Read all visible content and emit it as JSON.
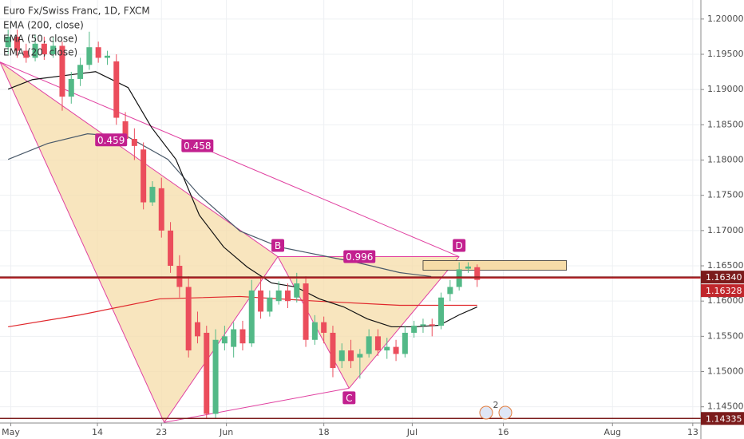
{
  "chart_data": {
    "type": "candlestick",
    "title": "Euro Fx/Swiss Franc, 1D, FXCM",
    "up_color": "#53b987",
    "down_color": "#eb4d5c",
    "xlim": [
      -0.9,
      76.8
    ],
    "xticks": [
      {
        "value": 0.3,
        "label": "May"
      },
      {
        "value": 9.9,
        "label": "14"
      },
      {
        "value": 17.0,
        "label": "23"
      },
      {
        "value": 24.2,
        "label": "Jun"
      },
      {
        "value": 35.0,
        "label": "18"
      },
      {
        "value": 44.8,
        "label": "Jul"
      },
      {
        "value": 54.9,
        "label": "16"
      },
      {
        "value": 67.0,
        "label": "Aug"
      },
      {
        "value": 75.9,
        "label": "13"
      }
    ],
    "ylim": [
      1.1427,
      1.2027
    ],
    "yticks": [
      {
        "value": 1.145,
        "label": "1.14500"
      },
      {
        "value": 1.15,
        "label": "1.15000"
      },
      {
        "value": 1.155,
        "label": "1.15500"
      },
      {
        "value": 1.16,
        "label": "1.16000"
      },
      {
        "value": 1.165,
        "label": "1.16500"
      },
      {
        "value": 1.17,
        "label": "1.17000"
      },
      {
        "value": 1.175,
        "label": "1.17500"
      },
      {
        "value": 1.18,
        "label": "1.18000"
      },
      {
        "value": 1.185,
        "label": "1.18500"
      },
      {
        "value": 1.19,
        "label": "1.19000"
      },
      {
        "value": 1.195,
        "label": "1.19500"
      },
      {
        "value": 1.2,
        "label": "1.20000"
      }
    ],
    "grid": true,
    "candles": {
      "x": [
        0,
        1,
        2,
        3,
        4,
        5,
        6,
        7,
        8,
        9,
        10,
        11,
        12,
        13,
        14,
        15,
        16,
        17,
        18,
        19,
        20,
        21,
        22,
        23,
        24,
        25,
        26,
        27,
        28,
        29,
        30,
        31,
        32,
        33,
        34,
        35,
        36,
        37,
        38,
        39,
        40,
        41,
        42,
        43,
        44,
        45,
        46,
        47,
        48,
        49,
        50,
        51,
        52
      ],
      "open": [
        1.196,
        1.1975,
        1.1955,
        1.1945,
        1.1965,
        1.195,
        1.1962,
        1.189,
        1.1915,
        1.1935,
        1.196,
        1.1945,
        1.194,
        1.1855,
        1.183,
        1.1815,
        1.174,
        1.176,
        1.17,
        1.165,
        1.162,
        1.157,
        1.1555,
        1.144,
        1.154,
        1.1535,
        1.156,
        1.154,
        1.1615,
        1.1585,
        1.16,
        1.1615,
        1.1605,
        1.1625,
        1.1545,
        1.157,
        1.1555,
        1.1515,
        1.153,
        1.152,
        1.1525,
        1.155,
        1.153,
        1.1535,
        1.1525,
        1.1555,
        1.1565,
        1.1567,
        1.1565,
        1.161,
        1.162,
        1.1646,
        1.1648
      ],
      "high": [
        1.1985,
        1.1985,
        1.1965,
        1.1978,
        1.1975,
        1.1975,
        1.1968,
        1.1925,
        1.1945,
        1.1982,
        1.1968,
        1.1955,
        1.195,
        1.1868,
        1.1845,
        1.1825,
        1.177,
        1.1775,
        1.1712,
        1.1665,
        1.1635,
        1.1585,
        1.1565,
        1.156,
        1.1565,
        1.157,
        1.1572,
        1.163,
        1.1635,
        1.1615,
        1.1628,
        1.1625,
        1.164,
        1.1635,
        1.158,
        1.1578,
        1.1565,
        1.154,
        1.1545,
        1.1532,
        1.156,
        1.156,
        1.1548,
        1.1545,
        1.1565,
        1.1572,
        1.1575,
        1.1575,
        1.1612,
        1.163,
        1.1655,
        1.1655,
        1.1652
      ],
      "low": [
        1.195,
        1.1945,
        1.1938,
        1.194,
        1.1942,
        1.1945,
        1.187,
        1.188,
        1.1905,
        1.1928,
        1.1938,
        1.1935,
        1.185,
        1.182,
        1.18,
        1.173,
        1.1735,
        1.169,
        1.164,
        1.1605,
        1.152,
        1.154,
        1.1433,
        1.1433,
        1.153,
        1.152,
        1.153,
        1.1535,
        1.1575,
        1.1578,
        1.1595,
        1.159,
        1.1598,
        1.1535,
        1.1538,
        1.154,
        1.1492,
        1.1505,
        1.1505,
        1.149,
        1.152,
        1.1522,
        1.1518,
        1.1515,
        1.152,
        1.1548,
        1.1555,
        1.155,
        1.156,
        1.16,
        1.1615,
        1.164,
        1.162
      ],
      "close": [
        1.1975,
        1.1955,
        1.1945,
        1.1965,
        1.195,
        1.1962,
        1.189,
        1.1915,
        1.1935,
        1.196,
        1.1945,
        1.1948,
        1.186,
        1.183,
        1.182,
        1.174,
        1.1762,
        1.17,
        1.165,
        1.162,
        1.153,
        1.155,
        1.144,
        1.1545,
        1.155,
        1.156,
        1.154,
        1.1615,
        1.1585,
        1.1605,
        1.1615,
        1.16,
        1.1625,
        1.1545,
        1.157,
        1.1555,
        1.1505,
        1.153,
        1.1515,
        1.1525,
        1.155,
        1.153,
        1.1535,
        1.1525,
        1.1555,
        1.1565,
        1.1567,
        1.1565,
        1.1605,
        1.162,
        1.1645,
        1.1649,
        1.163
      ]
    },
    "series": [
      {
        "name": "EMA (200, close)",
        "color": "#e0262b",
        "x": [
          0,
          8,
          16.8,
          25.7,
          34.5,
          43.4,
          52
        ],
        "values": [
          1.15635,
          1.15804,
          1.16031,
          1.16065,
          1.15997,
          1.1594,
          1.1594
        ]
      },
      {
        "name": "EMA (50, close)",
        "color": "#4a5a6a",
        "x": [
          0,
          4.4,
          8.8,
          13.3,
          17.7,
          21.2,
          25.7,
          30.1,
          34.5,
          38.9,
          43.4,
          46.9
        ],
        "values": [
          1.1801,
          1.18236,
          1.18372,
          1.18327,
          1.1801,
          1.17501,
          1.16993,
          1.16766,
          1.16653,
          1.1654,
          1.16404,
          1.16348
        ]
      },
      {
        "name": "EMA (20, close)",
        "color": "#111111",
        "x": [
          0,
          2.7,
          6.2,
          9.7,
          13.3,
          15.9,
          18.6,
          21.2,
          23.9,
          26.5,
          29.2,
          31.9,
          34.5,
          37.2,
          39.8,
          42.5,
          45.1,
          47.8,
          50,
          52
        ],
        "values": [
          1.19005,
          1.19141,
          1.19198,
          1.19254,
          1.19028,
          1.18462,
          1.1801,
          1.17218,
          1.16766,
          1.16483,
          1.16257,
          1.162,
          1.16031,
          1.15917,
          1.15748,
          1.15635,
          1.15635,
          1.15657,
          1.15804,
          1.15917
        ]
      }
    ],
    "pattern": {
      "color": "#e040a0",
      "fill": "#f6dca8",
      "x": [
        -0.9,
        17.3,
        29.9,
        37.8,
        50
      ],
      "y": [
        1.1939,
        1.14278,
        1.1663,
        1.14764,
        1.1663
      ],
      "labels": [
        null,
        null,
        "B",
        "C",
        "D"
      ],
      "ratios": [
        0.459,
        0.458,
        0.996
      ]
    },
    "zone": {
      "color": "#f6dca8",
      "x": [
        46,
        61.9
      ],
      "y": [
        1.16438,
        1.16574
      ]
    },
    "price_lines": [
      {
        "value": 1.1634,
        "label": "1.16340",
        "color": "#7b1b1b"
      },
      {
        "value": 1.16328,
        "label": "1.16328",
        "color": "#c0262b"
      },
      {
        "value": 1.14335,
        "label": "1.14335",
        "color": "#7b1b1b"
      }
    ],
    "events": 2
  }
}
